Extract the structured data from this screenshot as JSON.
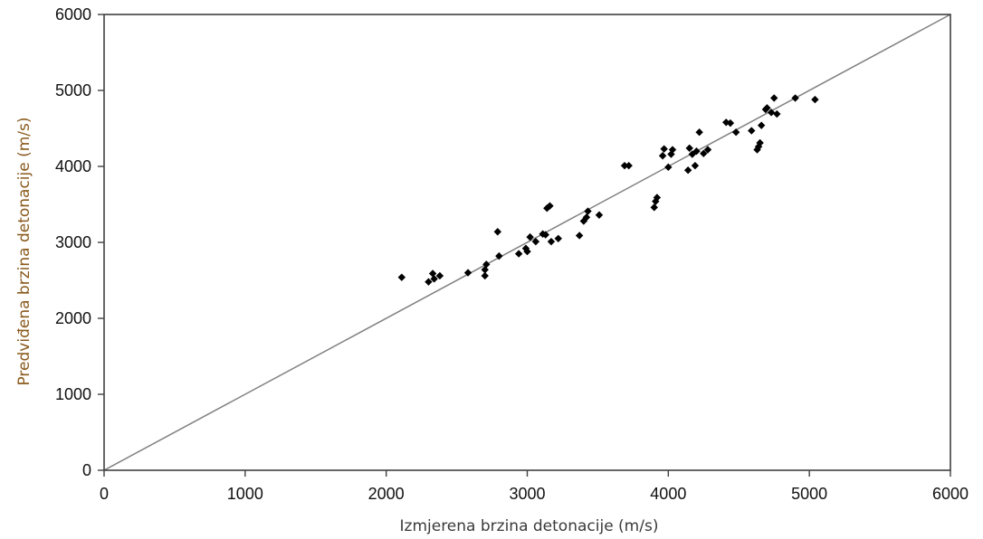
{
  "chart_data": {
    "type": "scatter",
    "title": "",
    "xlabel": "Izmjerena brzina detonacije (m/s)",
    "ylabel": "Predviđena brzina detonacije (m/s)",
    "xlim": [
      0,
      6000
    ],
    "ylim": [
      0,
      6000
    ],
    "xticks": [
      "0",
      "1000",
      "2000",
      "3000",
      "4000",
      "5000",
      "6000"
    ],
    "yticks": [
      "0",
      "1000",
      "2000",
      "3000",
      "4000",
      "5000",
      "6000"
    ],
    "grid": false,
    "legend": "none",
    "reference_line": {
      "from": [
        0,
        0
      ],
      "to": [
        6000,
        6000
      ],
      "color": "#808080"
    },
    "colors": {
      "marker": "#000000",
      "axis": "#404040",
      "xlabel": "#3a3a3a",
      "ylabel": "#8a5a1c"
    },
    "marker": "diamond",
    "series": [
      {
        "values": [
          [
            2110,
            2540
          ],
          [
            2300,
            2480
          ],
          [
            2330,
            2590
          ],
          [
            2340,
            2520
          ],
          [
            2380,
            2560
          ],
          [
            2580,
            2600
          ],
          [
            2700,
            2560
          ],
          [
            2700,
            2640
          ],
          [
            2710,
            2710
          ],
          [
            2790,
            3140
          ],
          [
            2800,
            2820
          ],
          [
            2940,
            2850
          ],
          [
            2990,
            2920
          ],
          [
            3000,
            2880
          ],
          [
            3020,
            3070
          ],
          [
            3060,
            3010
          ],
          [
            3110,
            3110
          ],
          [
            3130,
            3100
          ],
          [
            3140,
            3450
          ],
          [
            3160,
            3480
          ],
          [
            3170,
            3010
          ],
          [
            3220,
            3050
          ],
          [
            3370,
            3090
          ],
          [
            3400,
            3280
          ],
          [
            3420,
            3330
          ],
          [
            3430,
            3410
          ],
          [
            3510,
            3360
          ],
          [
            3690,
            4010
          ],
          [
            3720,
            4010
          ],
          [
            3900,
            3460
          ],
          [
            3910,
            3540
          ],
          [
            3920,
            3590
          ],
          [
            3960,
            4140
          ],
          [
            3970,
            4230
          ],
          [
            4000,
            3990
          ],
          [
            4020,
            4160
          ],
          [
            4030,
            4220
          ],
          [
            4140,
            3950
          ],
          [
            4150,
            4240
          ],
          [
            4170,
            4160
          ],
          [
            4190,
            4010
          ],
          [
            4200,
            4200
          ],
          [
            4220,
            4450
          ],
          [
            4250,
            4170
          ],
          [
            4280,
            4220
          ],
          [
            4410,
            4580
          ],
          [
            4440,
            4570
          ],
          [
            4480,
            4450
          ],
          [
            4590,
            4470
          ],
          [
            4630,
            4220
          ],
          [
            4640,
            4260
          ],
          [
            4650,
            4310
          ],
          [
            4660,
            4540
          ],
          [
            4690,
            4750
          ],
          [
            4700,
            4770
          ],
          [
            4730,
            4710
          ],
          [
            4750,
            4900
          ],
          [
            4770,
            4690
          ],
          [
            4900,
            4900
          ],
          [
            5040,
            4880
          ]
        ]
      }
    ]
  }
}
